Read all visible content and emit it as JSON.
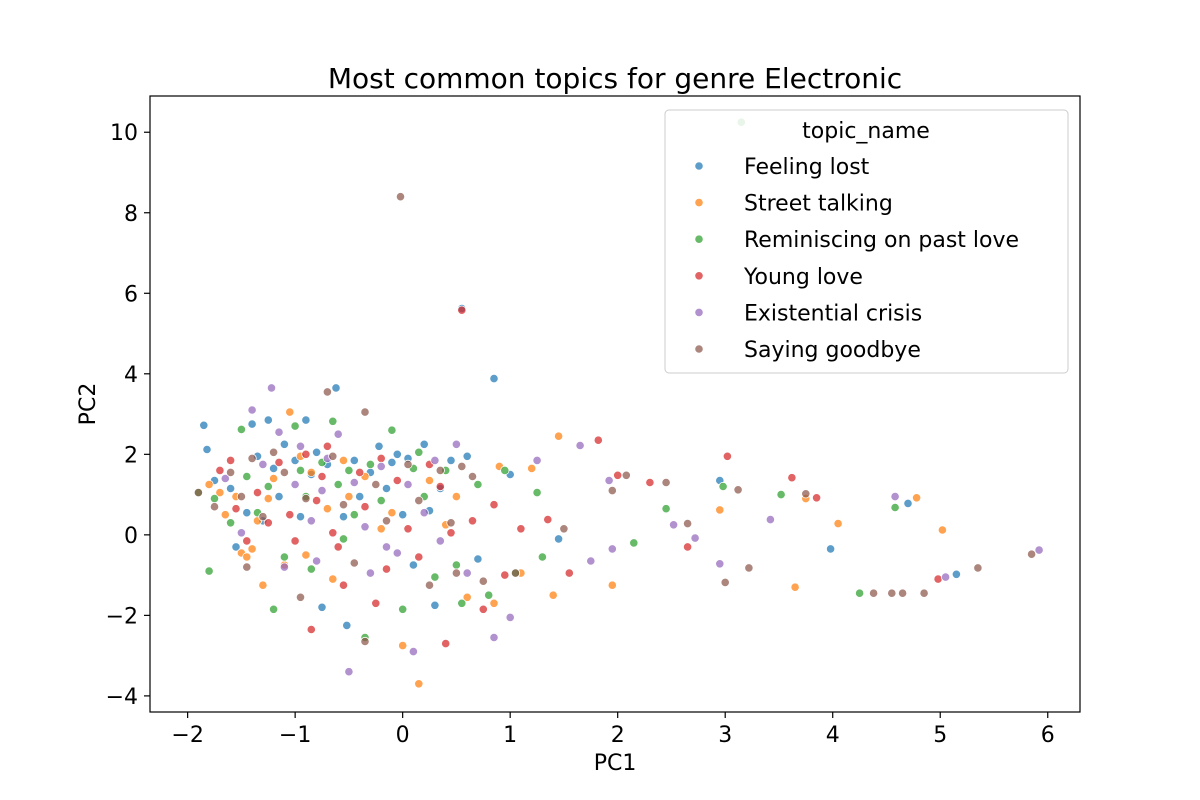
{
  "chart_data": {
    "type": "scatter",
    "title": "Most common topics for genre Electronic",
    "xlabel": "PC1",
    "ylabel": "PC2",
    "xlim": [
      -2.35,
      6.3
    ],
    "ylim": [
      -4.4,
      10.9
    ],
    "xticks": [
      -2,
      -1,
      0,
      1,
      2,
      3,
      4,
      5,
      6
    ],
    "yticks": [
      -4,
      -2,
      0,
      2,
      4,
      6,
      8,
      10
    ],
    "grid": false,
    "legend": {
      "title": "topic_name",
      "placement": "upper-right"
    },
    "series": [
      {
        "name": "Feeling lost",
        "color": "#1f77b4",
        "points": [
          [
            -1.85,
            2.72
          ],
          [
            -1.82,
            2.12
          ],
          [
            -1.75,
            1.35
          ],
          [
            -1.6,
            1.15
          ],
          [
            -1.45,
            0.55
          ],
          [
            -1.4,
            2.75
          ],
          [
            -1.35,
            1.95
          ],
          [
            -1.3,
            0.35
          ],
          [
            -1.25,
            2.85
          ],
          [
            -1.2,
            1.65
          ],
          [
            -1.15,
            0.95
          ],
          [
            -1.1,
            2.25
          ],
          [
            -1.0,
            1.85
          ],
          [
            -0.95,
            0.45
          ],
          [
            -0.9,
            2.85
          ],
          [
            -0.85,
            1.5
          ],
          [
            -0.8,
            2.05
          ],
          [
            -0.75,
            -1.8
          ],
          [
            -0.7,
            1.75
          ],
          [
            -0.62,
            3.65
          ],
          [
            -0.55,
            0.45
          ],
          [
            -0.52,
            -2.25
          ],
          [
            -0.45,
            1.85
          ],
          [
            -0.4,
            0.95
          ],
          [
            -0.3,
            1.55
          ],
          [
            -0.22,
            2.2
          ],
          [
            -0.15,
            1.15
          ],
          [
            -0.1,
            1.8
          ],
          [
            -0.05,
            2.0
          ],
          [
            0.0,
            0.5
          ],
          [
            0.05,
            1.9
          ],
          [
            0.1,
            -0.75
          ],
          [
            0.2,
            2.25
          ],
          [
            0.3,
            -1.75
          ],
          [
            0.35,
            1.15
          ],
          [
            0.45,
            1.85
          ],
          [
            0.55,
            5.62
          ],
          [
            0.6,
            1.95
          ],
          [
            0.7,
            -0.6
          ],
          [
            0.85,
            3.88
          ],
          [
            1.0,
            1.5
          ],
          [
            1.45,
            -0.1
          ],
          [
            2.95,
            1.35
          ],
          [
            3.98,
            -0.35
          ],
          [
            4.7,
            0.78
          ],
          [
            5.15,
            -0.98
          ],
          [
            -1.55,
            -0.3
          ],
          [
            0.25,
            0.6
          ]
        ]
      },
      {
        "name": "Street talking",
        "color": "#ff7f0e",
        "points": [
          [
            -1.8,
            1.25
          ],
          [
            -1.7,
            1.05
          ],
          [
            -1.65,
            0.5
          ],
          [
            -1.55,
            0.95
          ],
          [
            -1.5,
            -0.45
          ],
          [
            -1.45,
            -0.55
          ],
          [
            -1.4,
            -0.35
          ],
          [
            -1.35,
            0.35
          ],
          [
            -1.3,
            -1.25
          ],
          [
            -1.2,
            1.4
          ],
          [
            -1.1,
            -0.75
          ],
          [
            -1.05,
            3.05
          ],
          [
            -0.95,
            1.95
          ],
          [
            -0.9,
            -0.5
          ],
          [
            -0.85,
            1.55
          ],
          [
            -0.7,
            0.65
          ],
          [
            -0.65,
            -1.1
          ],
          [
            -0.55,
            1.85
          ],
          [
            -0.5,
            0.95
          ],
          [
            -0.35,
            1.45
          ],
          [
            -0.2,
            0.15
          ],
          [
            -0.1,
            0.55
          ],
          [
            0.0,
            -2.75
          ],
          [
            0.15,
            -3.7
          ],
          [
            0.25,
            1.35
          ],
          [
            0.4,
            0.25
          ],
          [
            0.6,
            -1.55
          ],
          [
            0.85,
            -1.7
          ],
          [
            0.9,
            1.7
          ],
          [
            1.1,
            -0.95
          ],
          [
            1.2,
            1.65
          ],
          [
            1.4,
            -1.5
          ],
          [
            1.45,
            2.45
          ],
          [
            1.95,
            -1.25
          ],
          [
            2.95,
            0.62
          ],
          [
            3.65,
            -1.3
          ],
          [
            3.75,
            0.9
          ],
          [
            4.05,
            0.28
          ],
          [
            4.78,
            0.92
          ],
          [
            5.02,
            0.12
          ],
          [
            -1.25,
            0.9
          ],
          [
            0.5,
            0.95
          ]
        ]
      },
      {
        "name": "Reminiscing on past love",
        "color": "#2ca02c",
        "points": [
          [
            -1.9,
            1.05
          ],
          [
            -1.75,
            0.9
          ],
          [
            -1.6,
            0.3
          ],
          [
            -1.5,
            2.62
          ],
          [
            -1.45,
            1.45
          ],
          [
            -1.35,
            0.55
          ],
          [
            -1.25,
            1.2
          ],
          [
            -1.2,
            -1.85
          ],
          [
            -1.1,
            -0.55
          ],
          [
            -1.0,
            2.7
          ],
          [
            -0.95,
            1.6
          ],
          [
            -0.9,
            0.95
          ],
          [
            -0.85,
            -0.85
          ],
          [
            -0.75,
            1.8
          ],
          [
            -0.65,
            2.82
          ],
          [
            -0.6,
            1.25
          ],
          [
            -0.55,
            -0.1
          ],
          [
            -0.5,
            1.6
          ],
          [
            -0.45,
            0.5
          ],
          [
            -0.35,
            -2.55
          ],
          [
            -0.3,
            1.75
          ],
          [
            -0.2,
            0.85
          ],
          [
            -0.1,
            2.6
          ],
          [
            0.0,
            -1.85
          ],
          [
            0.1,
            1.65
          ],
          [
            0.2,
            0.95
          ],
          [
            0.3,
            -1.05
          ],
          [
            0.4,
            1.6
          ],
          [
            0.5,
            -0.75
          ],
          [
            0.55,
            -1.7
          ],
          [
            0.7,
            1.25
          ],
          [
            0.8,
            -1.5
          ],
          [
            0.95,
            1.6
          ],
          [
            1.05,
            -0.95
          ],
          [
            1.25,
            1.05
          ],
          [
            1.3,
            -0.55
          ],
          [
            2.15,
            -0.2
          ],
          [
            2.45,
            0.65
          ],
          [
            2.98,
            1.2
          ],
          [
            3.15,
            10.25
          ],
          [
            3.52,
            1.0
          ],
          [
            4.25,
            -1.45
          ],
          [
            4.58,
            0.68
          ],
          [
            -1.8,
            -0.9
          ],
          [
            0.15,
            2.05
          ]
        ]
      },
      {
        "name": "Young love",
        "color": "#d62728",
        "points": [
          [
            -1.7,
            1.6
          ],
          [
            -1.6,
            1.85
          ],
          [
            -1.55,
            0.65
          ],
          [
            -1.45,
            -0.15
          ],
          [
            -1.35,
            1.05
          ],
          [
            -1.25,
            0.3
          ],
          [
            -1.15,
            1.8
          ],
          [
            -1.05,
            0.5
          ],
          [
            -1.0,
            -0.15
          ],
          [
            -0.9,
            2.0
          ],
          [
            -0.85,
            -2.35
          ],
          [
            -0.8,
            0.85
          ],
          [
            -0.75,
            1.45
          ],
          [
            -0.7,
            2.2
          ],
          [
            -0.6,
            -0.3
          ],
          [
            -0.55,
            -1.25
          ],
          [
            -0.4,
            1.55
          ],
          [
            -0.35,
            0.7
          ],
          [
            -0.25,
            -1.7
          ],
          [
            -0.2,
            1.9
          ],
          [
            -0.15,
            -0.85
          ],
          [
            -0.05,
            1.35
          ],
          [
            0.05,
            0.15
          ],
          [
            0.15,
            -0.55
          ],
          [
            0.25,
            1.75
          ],
          [
            0.35,
            1.2
          ],
          [
            0.4,
            -2.7
          ],
          [
            0.55,
            5.58
          ],
          [
            0.65,
            0.35
          ],
          [
            0.75,
            -1.85
          ],
          [
            0.85,
            0.75
          ],
          [
            0.95,
            -1.0
          ],
          [
            1.1,
            0.15
          ],
          [
            1.35,
            0.38
          ],
          [
            1.55,
            -0.95
          ],
          [
            1.82,
            2.35
          ],
          [
            2.0,
            1.48
          ],
          [
            2.3,
            1.3
          ],
          [
            2.65,
            -0.3
          ],
          [
            3.02,
            1.95
          ],
          [
            3.62,
            1.42
          ],
          [
            3.85,
            0.92
          ],
          [
            4.98,
            -1.1
          ],
          [
            -0.65,
            0.05
          ],
          [
            0.45,
            0.05
          ]
        ]
      },
      {
        "name": "Existential crisis",
        "color": "#9467bd",
        "points": [
          [
            -1.65,
            1.4
          ],
          [
            -1.5,
            0.05
          ],
          [
            -1.4,
            3.1
          ],
          [
            -1.3,
            1.75
          ],
          [
            -1.22,
            3.65
          ],
          [
            -1.15,
            2.55
          ],
          [
            -1.1,
            -0.8
          ],
          [
            -1.0,
            1.25
          ],
          [
            -0.95,
            2.2
          ],
          [
            -0.85,
            0.35
          ],
          [
            -0.8,
            -0.65
          ],
          [
            -0.7,
            1.9
          ],
          [
            -0.6,
            2.5
          ],
          [
            -0.5,
            -3.4
          ],
          [
            -0.45,
            1.3
          ],
          [
            -0.35,
            0.2
          ],
          [
            -0.3,
            -0.95
          ],
          [
            -0.2,
            1.7
          ],
          [
            -0.15,
            -0.3
          ],
          [
            -0.05,
            -0.45
          ],
          [
            0.05,
            1.25
          ],
          [
            0.1,
            -2.9
          ],
          [
            0.2,
            0.55
          ],
          [
            0.3,
            1.85
          ],
          [
            0.35,
            -0.15
          ],
          [
            0.5,
            2.25
          ],
          [
            0.6,
            -0.95
          ],
          [
            0.85,
            -2.55
          ],
          [
            1.0,
            -2.05
          ],
          [
            1.25,
            1.85
          ],
          [
            1.65,
            2.22
          ],
          [
            1.75,
            -0.65
          ],
          [
            1.92,
            1.35
          ],
          [
            1.95,
            -0.35
          ],
          [
            2.52,
            0.25
          ],
          [
            2.72,
            -0.08
          ],
          [
            2.95,
            -0.72
          ],
          [
            3.42,
            0.38
          ],
          [
            4.58,
            0.95
          ],
          [
            5.05,
            -1.05
          ],
          [
            5.92,
            -0.38
          ],
          [
            -0.75,
            1.1
          ]
        ]
      },
      {
        "name": "Saying goodbye",
        "color": "#8c564b",
        "points": [
          [
            -1.9,
            1.05
          ],
          [
            -1.75,
            0.7
          ],
          [
            -1.6,
            1.55
          ],
          [
            -1.5,
            0.95
          ],
          [
            -1.4,
            1.9
          ],
          [
            -1.3,
            0.45
          ],
          [
            -1.2,
            2.05
          ],
          [
            -1.1,
            1.55
          ],
          [
            -0.95,
            -1.55
          ],
          [
            -0.9,
            0.9
          ],
          [
            -0.7,
            3.55
          ],
          [
            -0.65,
            1.95
          ],
          [
            -0.55,
            0.75
          ],
          [
            -0.45,
            -0.7
          ],
          [
            -0.35,
            3.05
          ],
          [
            -0.35,
            -2.65
          ],
          [
            -0.25,
            1.25
          ],
          [
            -0.15,
            0.35
          ],
          [
            -0.02,
            8.4
          ],
          [
            0.05,
            1.75
          ],
          [
            0.15,
            0.85
          ],
          [
            0.25,
            -1.25
          ],
          [
            0.35,
            1.6
          ],
          [
            0.45,
            0.3
          ],
          [
            0.5,
            -0.95
          ],
          [
            0.65,
            1.45
          ],
          [
            0.75,
            -1.15
          ],
          [
            1.05,
            -0.95
          ],
          [
            1.5,
            0.15
          ],
          [
            1.95,
            1.1
          ],
          [
            2.08,
            1.48
          ],
          [
            2.45,
            1.3
          ],
          [
            2.65,
            0.28
          ],
          [
            3.0,
            -1.18
          ],
          [
            3.12,
            1.12
          ],
          [
            3.22,
            -0.82
          ],
          [
            3.75,
            1.02
          ],
          [
            4.38,
            -1.45
          ],
          [
            4.55,
            -1.45
          ],
          [
            4.65,
            -1.45
          ],
          [
            4.85,
            -1.45
          ],
          [
            5.35,
            -0.82
          ],
          [
            5.85,
            -0.48
          ],
          [
            -1.45,
            -0.8
          ],
          [
            0.55,
            1.7
          ]
        ]
      }
    ]
  }
}
